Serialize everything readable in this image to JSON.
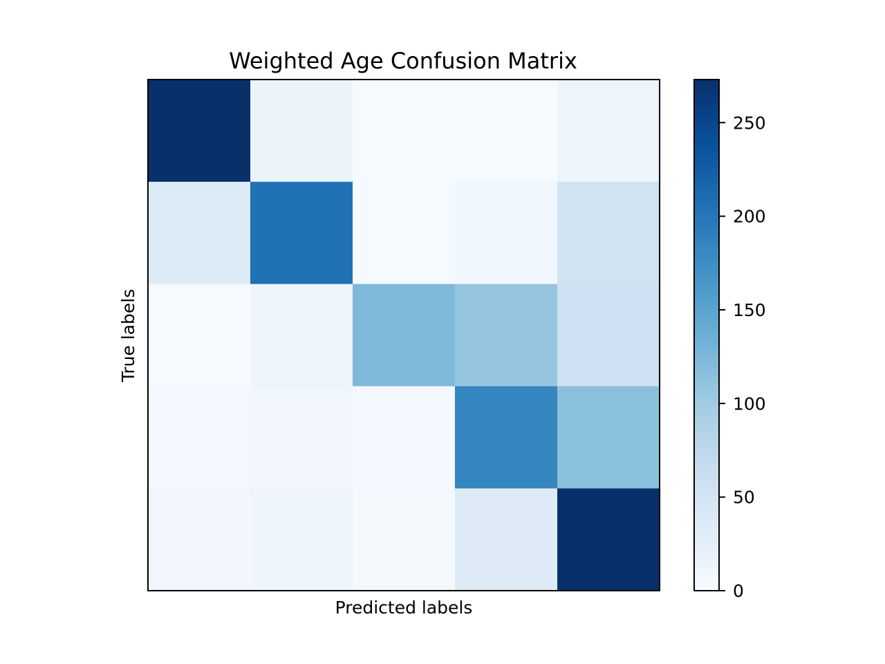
{
  "chart_data": {
    "type": "heatmap",
    "title": "Weighted Age Confusion Matrix",
    "xlabel": "Predicted labels",
    "ylabel": "True labels",
    "colormap": "Blues",
    "values": [
      [
        272,
        17,
        3,
        3,
        14
      ],
      [
        35,
        205,
        3,
        10,
        52
      ],
      [
        2,
        13,
        123,
        108,
        57
      ],
      [
        7,
        8,
        6,
        183,
        115
      ],
      [
        8,
        12,
        4,
        34,
        273
      ]
    ],
    "colorbar": {
      "min": 0,
      "max": 273,
      "ticks": [
        0,
        50,
        100,
        150,
        200,
        250
      ],
      "tick_labels": [
        "0",
        "50",
        "100",
        "150",
        "200",
        "250"
      ]
    },
    "grid": false,
    "x_ticks": [],
    "y_ticks": []
  }
}
